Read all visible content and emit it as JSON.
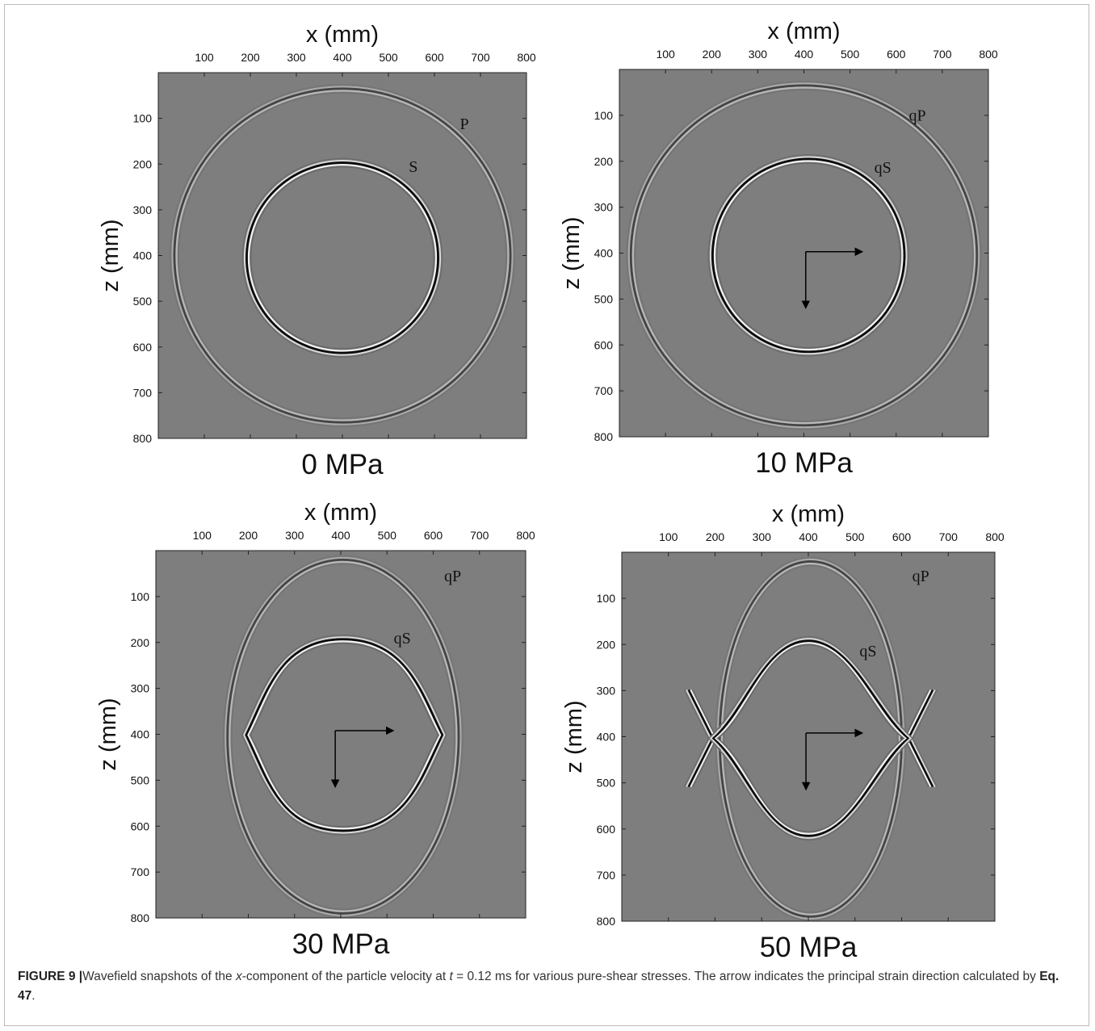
{
  "chart_data": [
    {
      "type": "wavefield",
      "title": "0 MPa",
      "xlabel": "x (mm)",
      "ylabel": "z (mm)",
      "xlim": [
        0,
        800
      ],
      "ylim": [
        0,
        800
      ],
      "y_reversed": true,
      "xticks": [
        100,
        200,
        300,
        400,
        500,
        600,
        700,
        800
      ],
      "yticks": [
        100,
        200,
        300,
        400,
        500,
        600,
        700,
        800
      ],
      "annotations": [
        "P",
        "S"
      ],
      "arrow": false
    },
    {
      "type": "wavefield",
      "title": "10 MPa",
      "xlabel": "x (mm)",
      "ylabel": "z (mm)",
      "xlim": [
        0,
        800
      ],
      "ylim": [
        0,
        800
      ],
      "y_reversed": true,
      "xticks": [
        100,
        200,
        300,
        400,
        500,
        600,
        700,
        800
      ],
      "yticks": [
        100,
        200,
        300,
        400,
        500,
        600,
        700,
        800
      ],
      "annotations": [
        "qP",
        "qS"
      ],
      "arrow": true
    },
    {
      "type": "wavefield",
      "title": "30 MPa",
      "xlabel": "x (mm)",
      "ylabel": "z (mm)",
      "xlim": [
        0,
        800
      ],
      "ylim": [
        0,
        800
      ],
      "y_reversed": true,
      "xticks": [
        100,
        200,
        300,
        400,
        500,
        600,
        700,
        800
      ],
      "yticks": [
        100,
        200,
        300,
        400,
        500,
        600,
        700,
        800
      ],
      "annotations": [
        "qP",
        "qS"
      ],
      "arrow": true
    },
    {
      "type": "wavefield",
      "title": "50 MPa",
      "xlabel": "x (mm)",
      "ylabel": "z (mm)",
      "xlim": [
        0,
        800
      ],
      "ylim": [
        0,
        800
      ],
      "y_reversed": true,
      "xticks": [
        100,
        200,
        300,
        400,
        500,
        600,
        700,
        800
      ],
      "yticks": [
        100,
        200,
        300,
        400,
        500,
        600,
        700,
        800
      ],
      "annotations": [
        "qP",
        "qS"
      ],
      "arrow": true
    }
  ],
  "caption": {
    "label": "FIGURE 9 |",
    "parts": [
      "Wavefield snapshots of the ",
      "x",
      "-component of the particle velocity at ",
      "t",
      " = 0.12 ms for various pure-shear stresses. The arrow indicates the principal strain direction calculated by ",
      "Eq. 47",
      "."
    ]
  }
}
